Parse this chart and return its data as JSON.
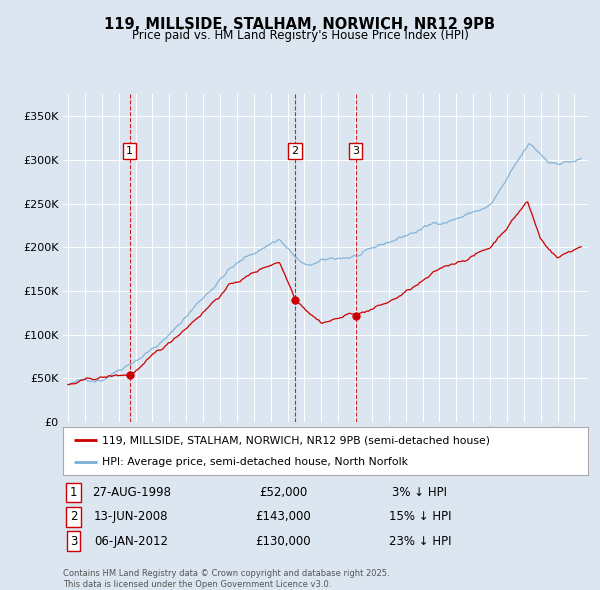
{
  "title_line1": "119, MILLSIDE, STALHAM, NORWICH, NR12 9PB",
  "title_line2": "Price paid vs. HM Land Registry's House Price Index (HPI)",
  "property_label": "119, MILLSIDE, STALHAM, NORWICH, NR12 9PB (semi-detached house)",
  "hpi_label": "HPI: Average price, semi-detached house, North Norfolk",
  "property_color": "#cc0000",
  "hpi_color": "#7bafd4",
  "background_color": "#dce6f1",
  "purchases": [
    {
      "num": 1,
      "date": "27-AUG-1998",
      "price": 52000,
      "pct": "3%",
      "dir": "↓",
      "x_year": 1998.65
    },
    {
      "num": 2,
      "date": "13-JUN-2008",
      "price": 143000,
      "pct": "15%",
      "dir": "↓",
      "x_year": 2008.45
    },
    {
      "num": 3,
      "date": "06-JAN-2012",
      "price": 130000,
      "pct": "23%",
      "dir": "↓",
      "x_year": 2012.03
    }
  ],
  "ylim": [
    0,
    375000
  ],
  "yticks": [
    0,
    50000,
    100000,
    150000,
    200000,
    250000,
    300000,
    350000
  ],
  "ytick_labels": [
    "£0",
    "£50K",
    "£100K",
    "£150K",
    "£200K",
    "£250K",
    "£300K",
    "£350K"
  ],
  "xlim_start": 1994.7,
  "xlim_end": 2025.8,
  "copyright_text": "Contains HM Land Registry data © Crown copyright and database right 2025.\nThis data is licensed under the Open Government Licence v3.0."
}
